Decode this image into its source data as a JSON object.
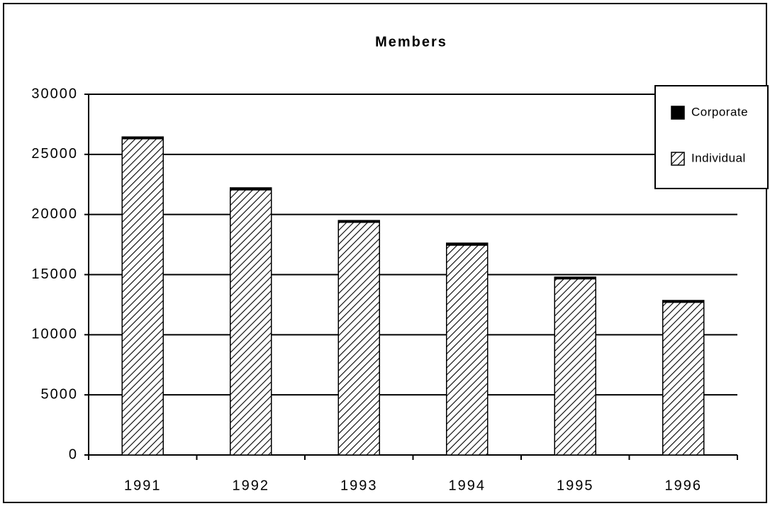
{
  "chart_data": {
    "type": "bar",
    "stacked": true,
    "title": "Members",
    "categories": [
      "1991",
      "1992",
      "1993",
      "1994",
      "1995",
      "1996"
    ],
    "series": [
      {
        "name": "Corporate",
        "color": "#000000",
        "values": [
          150,
          170,
          150,
          170,
          140,
          150
        ]
      },
      {
        "name": "Individual",
        "color": "hatch",
        "values": [
          26300,
          22050,
          19350,
          17450,
          14650,
          12700
        ]
      }
    ],
    "ylim": [
      0,
      30000
    ],
    "yticks": [
      0,
      5000,
      10000,
      15000,
      20000,
      25000,
      30000
    ],
    "grid": true,
    "legend": "upper right"
  }
}
